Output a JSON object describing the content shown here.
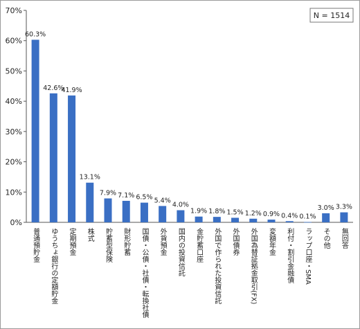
{
  "chart_data": {
    "type": "bar",
    "categories": [
      "普通預貯金",
      "ゆうちょ銀行の定額貯金",
      "定期預金",
      "株式",
      "貯蓄型保険",
      "財形貯蓄",
      "国債・公債・社債・転換社債",
      "外貨預金",
      "国内の投資信託",
      "金貯蓄口座",
      "外国で作られた投資信託",
      "外国債券",
      "外国為替証拠金取引(FX)",
      "変額年金",
      "利付・割引金融債",
      "ラップ口座・SMA",
      "その他",
      "無回答"
    ],
    "values": [
      60.3,
      42.6,
      41.9,
      13.1,
      7.9,
      7.1,
      6.5,
      5.4,
      4.0,
      1.9,
      1.8,
      1.5,
      1.2,
      0.9,
      0.4,
      0.1,
      3.0,
      3.3
    ],
    "data_labels": [
      "60.3%",
      "42.6%",
      "41.9%",
      "13.1%",
      "7.9%",
      "7.1%",
      "6.5%",
      "5.4%",
      "4.0%",
      "1.9%",
      "1.8%",
      "1.5%",
      "1.2%",
      "0.9%",
      "0.4%",
      "0.1%",
      "3.0%",
      "3.3%"
    ],
    "yticks": [
      "0%",
      "10%",
      "20%",
      "30%",
      "40%",
      "50%",
      "60%",
      "70%"
    ],
    "ylim": [
      0,
      70
    ],
    "bar_color": "#3a6fc4",
    "grid": false,
    "legend": "none"
  },
  "sample_note": "N = 1514"
}
